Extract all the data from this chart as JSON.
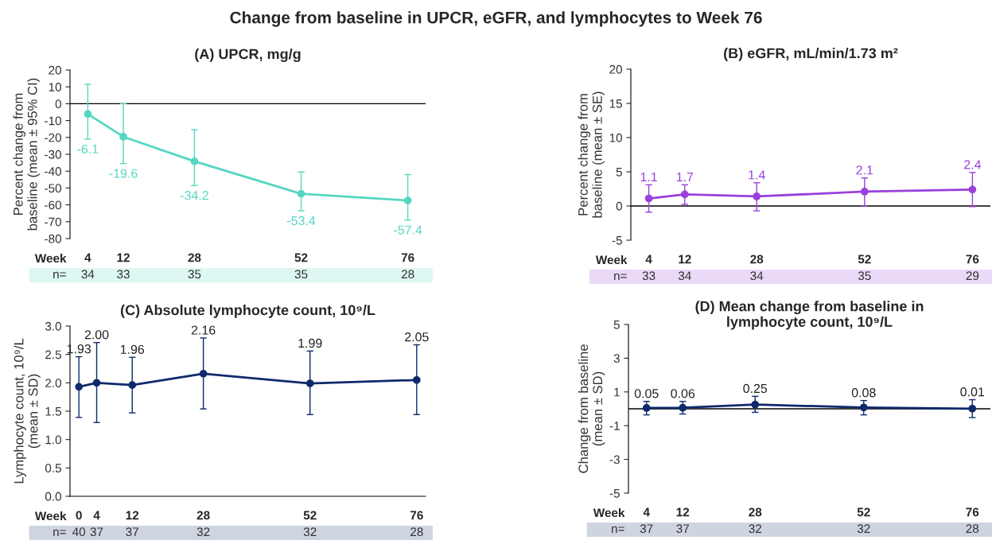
{
  "chart_data": [
    {
      "type": "line",
      "title": "Change from baseline in UPCR, eGFR, and lymphocytes to Week 76",
      "subtitle": "(A) UPCR, mg/g",
      "ylabel": "Percent change from\nbaseline (mean ± 95% CI)",
      "xlabel": "Week",
      "x": [
        4,
        12,
        28,
        52,
        76
      ],
      "xlim": [
        0,
        80
      ],
      "xticks": [
        4,
        12,
        28,
        52,
        76
      ],
      "ylim": [
        -80,
        20
      ],
      "yticks": [
        -80,
        -70,
        -60,
        -50,
        -40,
        -30,
        -20,
        -10,
        0,
        10,
        20
      ],
      "marker": "circle",
      "line_style": "solid",
      "grid": false,
      "legend": false,
      "series": [
        {
          "color": "#55d6c2",
          "values": [
            -6.1,
            -19.6,
            -34.2,
            -53.4,
            -57.4
          ],
          "errors": [
            [
              -21,
              11.5
            ],
            [
              -35.5,
              0
            ],
            [
              -48.5,
              -15.5
            ],
            [
              -63.5,
              -40.5
            ],
            [
              -69,
              -42
            ]
          ],
          "value_labels": [
            "-6.1",
            "-19.6",
            "-34.2",
            "-53.4",
            "-57.4"
          ]
        }
      ],
      "ref_lines": [
        {
          "axis": "y",
          "value": 0,
          "color": "#000000"
        }
      ],
      "annotations": [
        "n=",
        "34",
        "33",
        "35",
        "35",
        "28"
      ]
    },
    {
      "type": "line",
      "subtitle": "(B) eGFR, mL/min/1.73 m²",
      "ylabel": "Percent change from\nbaseline (mean ± SE)",
      "xlabel": "Week",
      "x": [
        4,
        12,
        28,
        52,
        76
      ],
      "xlim": [
        0,
        80
      ],
      "xticks": [
        4,
        12,
        28,
        52,
        76
      ],
      "ylim": [
        -5,
        20
      ],
      "yticks": [
        -5,
        0,
        5,
        10,
        15,
        20
      ],
      "marker": "circle",
      "line_style": "solid",
      "grid": false,
      "legend": false,
      "series": [
        {
          "color": "#9a40dc",
          "values": [
            1.1,
            1.7,
            1.4,
            2.1,
            2.4
          ],
          "errors": [
            [
              -0.9,
              3.1
            ],
            [
              0.25,
              3.1
            ],
            [
              -0.7,
              3.4
            ],
            [
              0,
              4.1
            ],
            [
              -0.1,
              4.9
            ]
          ],
          "value_labels": [
            "1.1",
            "1.7",
            "1.4",
            "2.1",
            "2.4"
          ]
        }
      ],
      "ref_lines": [
        {
          "axis": "y",
          "value": 0,
          "color": "#000000"
        }
      ],
      "annotations": [
        "n=",
        "33",
        "34",
        "34",
        "35",
        "29"
      ]
    },
    {
      "type": "line",
      "subtitle": "(C) Absolute lymphocyte count, 10⁹/L",
      "ylabel": "Lymphocyte count, 10⁹/L\n(mean ± SD)",
      "xlabel": "Week",
      "x": [
        0,
        4,
        12,
        28,
        52,
        76
      ],
      "xlim": [
        -2,
        78
      ],
      "xticks": [
        0,
        4,
        12,
        28,
        52,
        76
      ],
      "ylim": [
        0,
        3
      ],
      "yticks": [
        {
          "value": 0,
          "label": "0.0"
        },
        {
          "value": 0.5,
          "label": "0.5"
        },
        {
          "value": 1,
          "label": "1.0"
        },
        {
          "value": 1.5,
          "label": "1.5"
        },
        {
          "value": 2,
          "label": "2.0"
        },
        {
          "value": 2.5,
          "label": "2.5"
        },
        {
          "value": 3,
          "label": "3.0"
        }
      ],
      "marker": "circle",
      "line_style": "solid",
      "grid": false,
      "legend": false,
      "series": [
        {
          "color": "#0e2a6b",
          "values": [
            1.93,
            2.0,
            1.96,
            2.16,
            1.99,
            2.05
          ],
          "errors": [
            [
              1.39,
              2.46
            ],
            [
              1.3,
              2.71
            ],
            [
              1.47,
              2.45
            ],
            [
              1.54,
              2.79
            ],
            [
              1.44,
              2.56
            ],
            [
              1.44,
              2.67
            ]
          ],
          "value_labels": [
            "1.93",
            "2.00",
            "1.96",
            "2.16",
            "1.99",
            "2.05"
          ]
        }
      ],
      "annotations": [
        "n=",
        "40",
        "37",
        "37",
        "32",
        "32",
        "28"
      ]
    },
    {
      "type": "line",
      "subtitle": "(D) Mean change from baseline in\nlymphocyte count, 10⁹/L",
      "ylabel": "Change from baseline\n(mean ± SD)",
      "xlabel": "Week",
      "x": [
        4,
        12,
        28,
        52,
        76
      ],
      "xlim": [
        0,
        80
      ],
      "xticks": [
        4,
        12,
        28,
        52,
        76
      ],
      "ylim": [
        -5,
        5
      ],
      "yticks": [
        -5,
        -3,
        -1,
        1,
        3,
        5
      ],
      "marker": "circle",
      "line_style": "solid",
      "grid": false,
      "legend": false,
      "series": [
        {
          "color": "#0e2a6b",
          "values": [
            0.05,
            0.06,
            0.25,
            0.08,
            0.01
          ],
          "errors": [
            [
              -0.36,
              0.44
            ],
            [
              -0.31,
              0.44
            ],
            [
              -0.21,
              0.74
            ],
            [
              -0.36,
              0.49
            ],
            [
              -0.52,
              0.54
            ]
          ],
          "value_labels": [
            "0.05",
            "0.06",
            "0.25",
            "0.08",
            "0.01"
          ]
        }
      ],
      "ref_lines": [
        {
          "axis": "y",
          "value": 0,
          "color": "#000000"
        }
      ],
      "annotations": [
        "n=",
        "37",
        "37",
        "32",
        "32",
        "28"
      ]
    }
  ]
}
